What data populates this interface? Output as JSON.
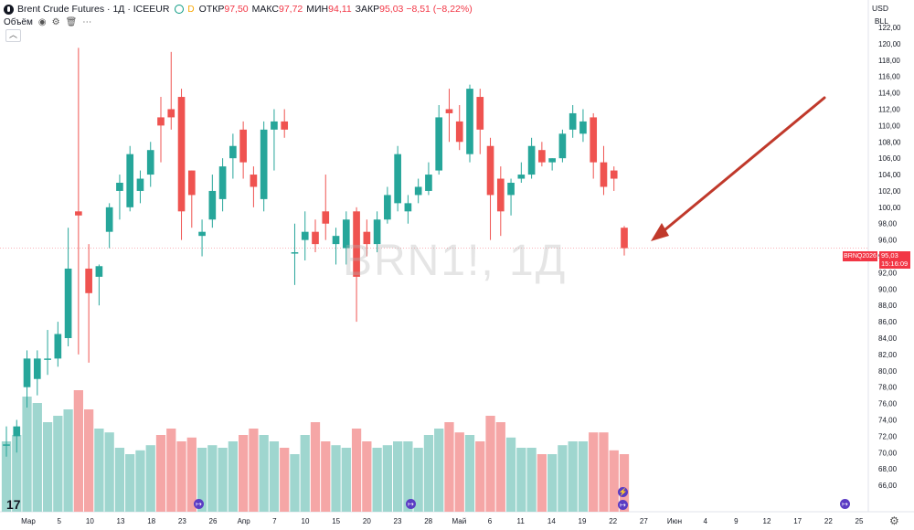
{
  "header": {
    "title": "Brent Crude Futures · 1Д · ICEEUR",
    "badge": "D",
    "open_label": "ОТКР",
    "open_value": "97,50",
    "high_label": "МАКС",
    "high_value": "97,72",
    "low_label": "МИН",
    "low_value": "94,11",
    "close_label": "ЗАКР",
    "close_value": "95,03 −8,51 (−8,22%)"
  },
  "volume_label": "Объём",
  "currency": "USD",
  "unit": "BLL",
  "watermark": "BRN1!, 1Д",
  "last_price_tag": {
    "symbol": "BRNQ2026",
    "price": "95,03",
    "time": "15:16:09"
  },
  "colors": {
    "up": "#26a69a",
    "down": "#ef5350",
    "up_vol": "#9fd6cf",
    "down_vol": "#f5a6a6",
    "arrow": "#c0392b"
  },
  "chart_data": {
    "type": "candlestick",
    "y_ticks": [
      "122,00",
      "120,00",
      "118,00",
      "116,00",
      "114,00",
      "112,00",
      "110,00",
      "108,00",
      "106,00",
      "104,00",
      "102,00",
      "100,00",
      "98,00",
      "96,00",
      "94,00",
      "92,00",
      "90,00",
      "88,00",
      "86,00",
      "84,00",
      "82,00",
      "80,00",
      "78,00",
      "76,00",
      "74,00",
      "72,00",
      "70,00",
      "68,00",
      "66,00"
    ],
    "x_ticks": [
      "Мар",
      "5",
      "10",
      "13",
      "18",
      "23",
      "26",
      "Апр",
      "7",
      "10",
      "15",
      "20",
      "23",
      "28",
      "Май",
      "6",
      "11",
      "14",
      "19",
      "22",
      "27",
      "Июн",
      "4",
      "9",
      "12",
      "17",
      "22",
      "25"
    ],
    "candles": [
      {
        "o": 71.0,
        "h": 73.2,
        "l": 69.5,
        "c": 71.0,
        "v": 0.55
      },
      {
        "o": 72.0,
        "h": 74.0,
        "l": 70.0,
        "c": 73.2,
        "v": 0.6
      },
      {
        "o": 78.0,
        "h": 82.5,
        "l": 75.5,
        "c": 81.5,
        "v": 0.9
      },
      {
        "o": 79.0,
        "h": 82.5,
        "l": 77.0,
        "c": 81.5,
        "v": 0.85
      },
      {
        "o": 81.5,
        "h": 85.0,
        "l": 79.5,
        "c": 81.5,
        "v": 0.7
      },
      {
        "o": 81.5,
        "h": 86.0,
        "l": 80.5,
        "c": 84.5,
        "v": 0.75
      },
      {
        "o": 84.0,
        "h": 97.5,
        "l": 83.0,
        "c": 92.5,
        "v": 0.8
      },
      {
        "o": 99.5,
        "h": 119.5,
        "l": 82.0,
        "c": 99.0,
        "v": 0.95
      },
      {
        "o": 92.5,
        "h": 95.5,
        "l": 81.0,
        "c": 89.5,
        "v": 0.8
      },
      {
        "o": 91.5,
        "h": 93.0,
        "l": 88.0,
        "c": 92.8,
        "v": 0.65
      },
      {
        "o": 97.0,
        "h": 100.5,
        "l": 95.0,
        "c": 100.0,
        "v": 0.62
      },
      {
        "o": 102.0,
        "h": 104.0,
        "l": 98.5,
        "c": 103.0,
        "v": 0.5
      },
      {
        "o": 100.0,
        "h": 107.5,
        "l": 99.5,
        "c": 106.5,
        "v": 0.45
      },
      {
        "o": 102.0,
        "h": 104.5,
        "l": 100.5,
        "c": 103.5,
        "v": 0.48
      },
      {
        "o": 104.0,
        "h": 108.0,
        "l": 102.5,
        "c": 107.0,
        "v": 0.52
      },
      {
        "o": 111.0,
        "h": 113.5,
        "l": 105.5,
        "c": 110.0,
        "v": 0.6
      },
      {
        "o": 112.0,
        "h": 119.0,
        "l": 109.5,
        "c": 111.0,
        "v": 0.65
      },
      {
        "o": 113.5,
        "h": 114.5,
        "l": 96.0,
        "c": 99.5,
        "v": 0.55
      },
      {
        "o": 104.5,
        "h": 104.5,
        "l": 97.5,
        "c": 101.5,
        "v": 0.58
      },
      {
        "o": 96.5,
        "h": 98.5,
        "l": 94.0,
        "c": 97.0,
        "v": 0.5
      },
      {
        "o": 98.5,
        "h": 104.0,
        "l": 97.5,
        "c": 102.0,
        "v": 0.52
      },
      {
        "o": 101.0,
        "h": 106.0,
        "l": 99.5,
        "c": 105.0,
        "v": 0.5
      },
      {
        "o": 106.0,
        "h": 109.0,
        "l": 103.5,
        "c": 107.5,
        "v": 0.55
      },
      {
        "o": 109.5,
        "h": 110.5,
        "l": 103.5,
        "c": 105.5,
        "v": 0.6
      },
      {
        "o": 104.0,
        "h": 105.0,
        "l": 100.0,
        "c": 102.5,
        "v": 0.65
      },
      {
        "o": 101.0,
        "h": 110.5,
        "l": 99.5,
        "c": 109.5,
        "v": 0.6
      },
      {
        "o": 109.5,
        "h": 112.0,
        "l": 104.5,
        "c": 110.5,
        "v": 0.55
      },
      {
        "o": 110.5,
        "h": 112.0,
        "l": 108.5,
        "c": 109.5,
        "v": 0.5
      },
      {
        "o": 94.5,
        "h": 98.0,
        "l": 90.5,
        "c": 94.5,
        "v": 0.45
      },
      {
        "o": 96.0,
        "h": 99.5,
        "l": 93.5,
        "c": 97.0,
        "v": 0.6
      },
      {
        "o": 97.0,
        "h": 98.5,
        "l": 94.5,
        "c": 95.5,
        "v": 0.7
      },
      {
        "o": 99.5,
        "h": 104.0,
        "l": 96.0,
        "c": 98.0,
        "v": 0.55
      },
      {
        "o": 95.5,
        "h": 97.5,
        "l": 93.0,
        "c": 96.5,
        "v": 0.52
      },
      {
        "o": 95.0,
        "h": 99.5,
        "l": 93.0,
        "c": 98.5,
        "v": 0.5
      },
      {
        "o": 99.5,
        "h": 100.0,
        "l": 86.0,
        "c": 91.5,
        "v": 0.65
      },
      {
        "o": 97.0,
        "h": 98.5,
        "l": 94.0,
        "c": 95.5,
        "v": 0.55
      },
      {
        "o": 95.5,
        "h": 99.5,
        "l": 94.5,
        "c": 98.5,
        "v": 0.5
      },
      {
        "o": 98.5,
        "h": 102.5,
        "l": 98.0,
        "c": 101.5,
        "v": 0.52
      },
      {
        "o": 100.5,
        "h": 107.5,
        "l": 99.5,
        "c": 106.5,
        "v": 0.55
      },
      {
        "o": 99.5,
        "h": 101.5,
        "l": 98.0,
        "c": 100.5,
        "v": 0.55
      },
      {
        "o": 101.5,
        "h": 103.5,
        "l": 100.5,
        "c": 102.5,
        "v": 0.5
      },
      {
        "o": 102.0,
        "h": 105.5,
        "l": 101.5,
        "c": 104.0,
        "v": 0.6
      },
      {
        "o": 104.5,
        "h": 112.5,
        "l": 104.0,
        "c": 111.0,
        "v": 0.65
      },
      {
        "o": 112.0,
        "h": 114.5,
        "l": 108.0,
        "c": 111.5,
        "v": 0.7
      },
      {
        "o": 110.5,
        "h": 112.5,
        "l": 107.0,
        "c": 108.0,
        "v": 0.62
      },
      {
        "o": 106.5,
        "h": 115.0,
        "l": 105.5,
        "c": 114.5,
        "v": 0.6
      },
      {
        "o": 113.5,
        "h": 114.5,
        "l": 106.5,
        "c": 109.5,
        "v": 0.55
      },
      {
        "o": 107.5,
        "h": 108.5,
        "l": 96.0,
        "c": 101.5,
        "v": 0.75
      },
      {
        "o": 103.5,
        "h": 105.0,
        "l": 96.5,
        "c": 99.5,
        "v": 0.7
      },
      {
        "o": 101.5,
        "h": 103.5,
        "l": 99.0,
        "c": 103.0,
        "v": 0.58
      },
      {
        "o": 103.5,
        "h": 105.5,
        "l": 103.0,
        "c": 104.0,
        "v": 0.5
      },
      {
        "o": 104.0,
        "h": 108.5,
        "l": 103.5,
        "c": 107.5,
        "v": 0.5
      },
      {
        "o": 107.0,
        "h": 108.0,
        "l": 105.0,
        "c": 105.5,
        "v": 0.45
      },
      {
        "o": 105.5,
        "h": 106.0,
        "l": 104.5,
        "c": 106.0,
        "v": 0.45
      },
      {
        "o": 106.0,
        "h": 109.5,
        "l": 105.5,
        "c": 109.0,
        "v": 0.52
      },
      {
        "o": 109.5,
        "h": 112.5,
        "l": 108.5,
        "c": 111.5,
        "v": 0.55
      },
      {
        "o": 109.0,
        "h": 112.0,
        "l": 108.0,
        "c": 110.5,
        "v": 0.55
      },
      {
        "o": 111.0,
        "h": 111.5,
        "l": 103.5,
        "c": 105.5,
        "v": 0.62
      },
      {
        "o": 105.5,
        "h": 107.5,
        "l": 101.5,
        "c": 102.5,
        "v": 0.62
      },
      {
        "o": 104.5,
        "h": 105.0,
        "l": 102.0,
        "c": 103.5,
        "v": 0.48
      },
      {
        "o": 97.5,
        "h": 97.7,
        "l": 94.1,
        "c": 95.0,
        "v": 0.45
      }
    ]
  }
}
